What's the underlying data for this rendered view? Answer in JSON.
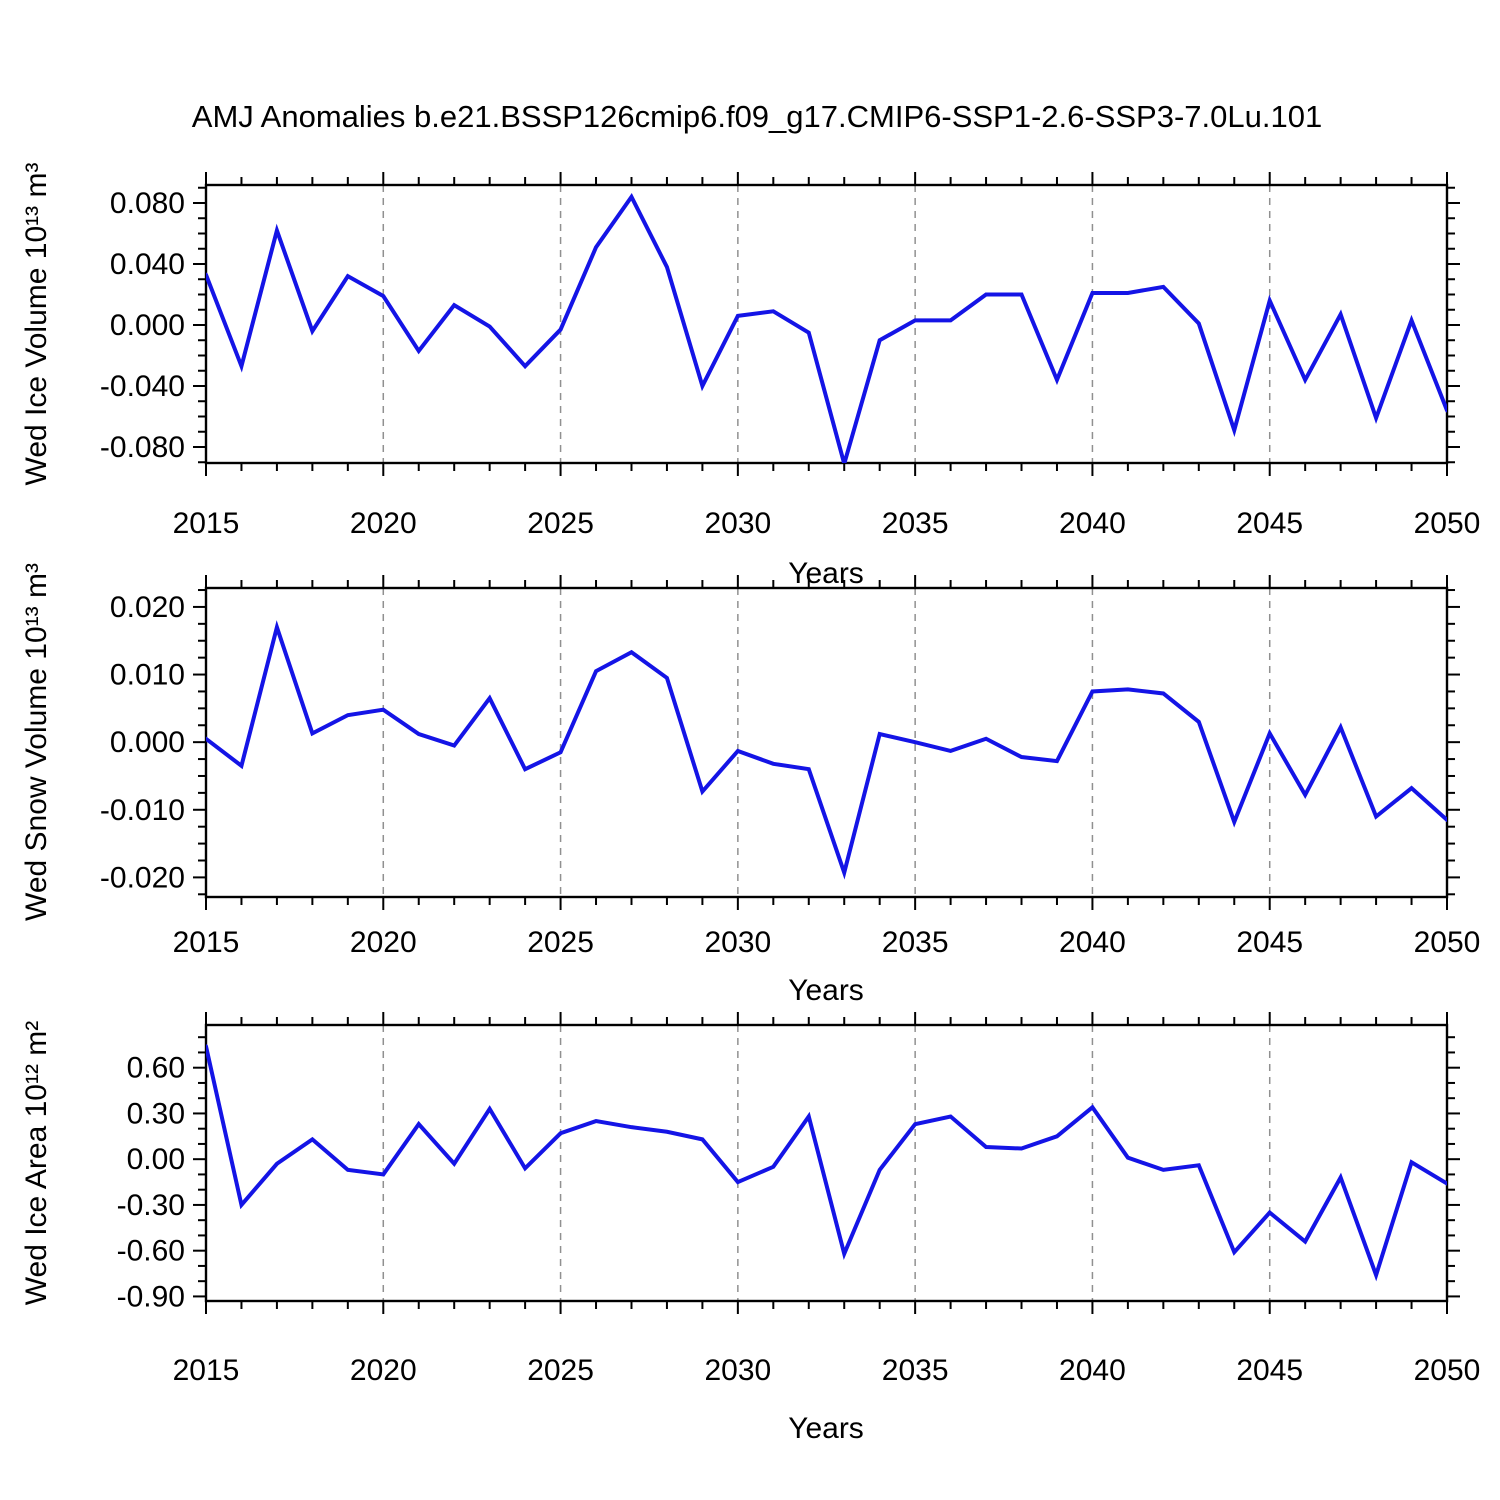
{
  "title": "AMJ Anomalies b.e21.BSSP126cmip6.f09_g17.CMIP6-SSP1-2.6-SSP3-7.0Lu.101",
  "accent_color": "#1414e6",
  "grid_color": "#909090",
  "frame_color": "#000000",
  "chart_data": [
    {
      "type": "line",
      "name": "wed-ice-volume",
      "ylabel": "Wed Ice Volume 10¹³ m³",
      "xlabel": "Years",
      "line_color": "#1414e6",
      "x": [
        2015,
        2016,
        2017,
        2018,
        2019,
        2020,
        2021,
        2022,
        2023,
        2024,
        2025,
        2026,
        2027,
        2028,
        2029,
        2030,
        2031,
        2032,
        2033,
        2034,
        2035,
        2036,
        2037,
        2038,
        2039,
        2040,
        2041,
        2042,
        2043,
        2044,
        2045,
        2046,
        2047,
        2048,
        2049,
        2050
      ],
      "values": [
        0.033,
        -0.027,
        0.062,
        -0.004,
        0.032,
        0.019,
        -0.017,
        0.013,
        -0.001,
        -0.027,
        -0.003,
        0.051,
        0.084,
        0.038,
        -0.04,
        0.006,
        0.009,
        -0.005,
        -0.091,
        -0.01,
        0.003,
        0.003,
        0.02,
        0.02,
        -0.036,
        0.021,
        0.021,
        0.025,
        0.001,
        -0.069,
        0.016,
        -0.036,
        0.007,
        -0.061,
        0.003,
        -0.056
      ],
      "xlim": [
        2015,
        2050
      ],
      "ylim": [
        -0.0905,
        0.0918
      ],
      "xticks_major": [
        2015,
        2020,
        2025,
        2030,
        2035,
        2040,
        2045,
        2050
      ],
      "xtick_labels": [
        "2015",
        "2020",
        "2025",
        "2030",
        "2035",
        "2040",
        "2045",
        "2050"
      ],
      "x_minor_step": 1,
      "yticks_major": [
        0.08,
        0.04,
        0.0,
        -0.04,
        -0.08
      ],
      "ytick_labels": [
        "0.080",
        "0.040",
        "0.000",
        "-0.040",
        "-0.080"
      ],
      "y_minor_step": 0.01,
      "gridline_x": [
        2020,
        2025,
        2030,
        2035,
        2040,
        2045
      ],
      "grid_on": "x-dashed",
      "legend": "none"
    },
    {
      "type": "line",
      "name": "wed-snow-volume",
      "ylabel": "Wed Snow Volume 10¹³ m³",
      "xlabel": "Years",
      "line_color": "#1414e6",
      "x": [
        2015,
        2016,
        2017,
        2018,
        2019,
        2020,
        2021,
        2022,
        2023,
        2024,
        2025,
        2026,
        2027,
        2028,
        2029,
        2030,
        2031,
        2032,
        2033,
        2034,
        2035,
        2036,
        2037,
        2038,
        2039,
        2040,
        2041,
        2042,
        2043,
        2044,
        2045,
        2046,
        2047,
        2048,
        2049,
        2050
      ],
      "values": [
        0.0005,
        -0.0035,
        0.017,
        0.0013,
        0.004,
        0.0048,
        0.0012,
        -0.0005,
        0.0065,
        -0.004,
        -0.0015,
        0.0105,
        0.0133,
        0.0095,
        -0.0073,
        -0.0013,
        -0.0032,
        -0.004,
        -0.0193,
        0.0012,
        0.0,
        -0.0013,
        0.0005,
        -0.0022,
        -0.0028,
        0.0075,
        0.0078,
        0.0072,
        0.003,
        -0.0118,
        0.0013,
        -0.0078,
        0.0022,
        -0.011,
        -0.0068,
        -0.0115
      ],
      "xlim": [
        2015,
        2050
      ],
      "ylim": [
        -0.0229,
        0.0228
      ],
      "xticks_major": [
        2015,
        2020,
        2025,
        2030,
        2035,
        2040,
        2045,
        2050
      ],
      "xtick_labels": [
        "2015",
        "2020",
        "2025",
        "2030",
        "2035",
        "2040",
        "2045",
        "2050"
      ],
      "x_minor_step": 1,
      "yticks_major": [
        0.02,
        0.01,
        0.0,
        -0.01,
        -0.02
      ],
      "ytick_labels": [
        "0.020",
        "0.010",
        "0.000",
        "-0.010",
        "-0.020"
      ],
      "y_minor_step": 0.0025,
      "gridline_x": [
        2020,
        2025,
        2030,
        2035,
        2040,
        2045
      ],
      "grid_on": "x-dashed",
      "legend": "none"
    },
    {
      "type": "line",
      "name": "wed-ice-area",
      "ylabel": "Wed Ice Area 10¹² m²",
      "xlabel": "Years",
      "line_color": "#1414e6",
      "x": [
        2015,
        2016,
        2017,
        2018,
        2019,
        2020,
        2021,
        2022,
        2023,
        2024,
        2025,
        2026,
        2027,
        2028,
        2029,
        2030,
        2031,
        2032,
        2033,
        2034,
        2035,
        2036,
        2037,
        2038,
        2039,
        2040,
        2041,
        2042,
        2043,
        2044,
        2045,
        2046,
        2047,
        2048,
        2049,
        2050
      ],
      "values": [
        0.74,
        -0.3,
        -0.03,
        0.13,
        -0.07,
        -0.1,
        0.23,
        -0.03,
        0.33,
        -0.06,
        0.17,
        0.25,
        0.21,
        0.18,
        0.13,
        -0.15,
        -0.05,
        0.28,
        -0.62,
        -0.07,
        0.23,
        0.28,
        0.08,
        0.07,
        0.15,
        0.34,
        0.01,
        -0.07,
        -0.04,
        -0.61,
        -0.35,
        -0.54,
        -0.12,
        -0.76,
        -0.02,
        -0.16
      ],
      "xlim": [
        2015,
        2050
      ],
      "ylim": [
        -0.93,
        0.88
      ],
      "xticks_major": [
        2015,
        2020,
        2025,
        2030,
        2035,
        2040,
        2045,
        2050
      ],
      "xtick_labels": [
        "2015",
        "2020",
        "2025",
        "2030",
        "2035",
        "2040",
        "2045",
        "2050"
      ],
      "x_minor_step": 1,
      "yticks_major": [
        0.6,
        0.3,
        0.0,
        -0.3,
        -0.6,
        -0.9
      ],
      "ytick_labels": [
        "0.60",
        "0.30",
        "0.00",
        "-0.30",
        "-0.60",
        "-0.90"
      ],
      "y_minor_step": 0.1,
      "gridline_x": [
        2020,
        2025,
        2030,
        2035,
        2040,
        2045
      ],
      "grid_on": "x-dashed",
      "legend": "none"
    }
  ]
}
